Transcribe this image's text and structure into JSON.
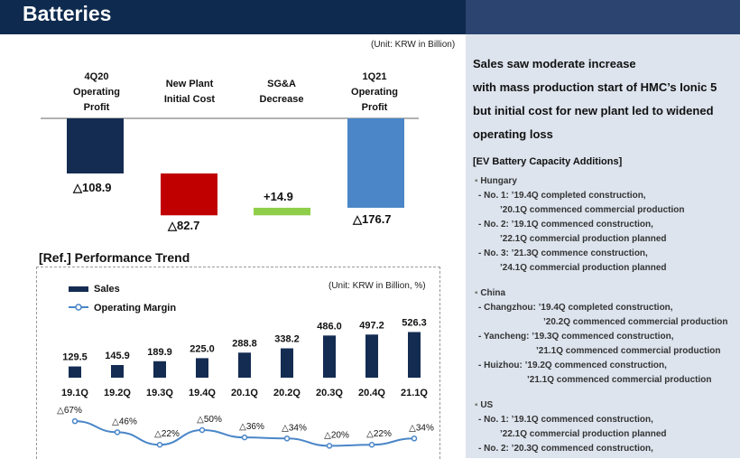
{
  "header": {
    "title": "Batteries"
  },
  "waterfall": {
    "unit": "(Unit: KRW in Billion)",
    "items": [
      {
        "label": [
          "4Q20",
          "Operating",
          "Profit"
        ],
        "value_text": "△108.9",
        "value": -108.9,
        "color": "#142c52"
      },
      {
        "label": [
          "New Plant",
          "Initial Cost"
        ],
        "value_text": "△82.7",
        "value": -82.7,
        "color": "#c00000"
      },
      {
        "label": [
          "SG&A",
          "Decrease"
        ],
        "value_text": "+14.9",
        "value": 14.9,
        "color": "#8fce4a"
      },
      {
        "label": [
          "1Q21",
          "Operating",
          "Profit"
        ],
        "value_text": "△176.7",
        "value": -176.7,
        "color": "#4a86c8"
      }
    ]
  },
  "trend": {
    "title": "[Ref.] Performance Trend",
    "unit": "(Unit: KRW in Billion, %)",
    "legend_sales": "Sales",
    "legend_margin": "Operating Margin"
  },
  "chart_data": {
    "type": "bar",
    "categories": [
      "19.1Q",
      "19.2Q",
      "19.3Q",
      "19.4Q",
      "20.1Q",
      "20.2Q",
      "20.3Q",
      "20.4Q",
      "21.1Q"
    ],
    "series": [
      {
        "name": "Sales",
        "values": [
          129.5,
          145.9,
          189.9,
          225.0,
          288.8,
          338.2,
          486.0,
          497.2,
          526.3
        ],
        "labels": [
          "129.5",
          "145.9",
          "189.9",
          "225.0",
          "288.8",
          "338.2",
          "486.0",
          "497.2",
          "526.3"
        ],
        "color": "#142c52"
      },
      {
        "name": "Operating Margin",
        "values": [
          -67,
          -46,
          -22,
          -50,
          -36,
          -34,
          -20,
          -22,
          -34
        ],
        "labels": [
          "△67%",
          "△46%",
          "△22%",
          "△50%",
          "△36%",
          "△34%",
          "△20%",
          "△22%",
          "△34%"
        ],
        "color": "#4a86c8"
      }
    ]
  },
  "right": {
    "heading": [
      "Sales saw moderate increase",
      "with mass production start of HMC’s Ionic 5",
      "but initial cost for new plant led to widened",
      "operating loss"
    ],
    "subheading": "[EV Battery Capacity Additions]",
    "sections": [
      {
        "name": "Hungary",
        "lines": [
          "- No. 1: ’19.4Q completed construction,",
          "’20.1Q commenced commercial production",
          "- No. 2: ’19.1Q commenced construction,",
          "’22.1Q commercial production planned",
          "- No. 3: ’21.3Q commence construction,",
          "’24.1Q commercial production planned"
        ]
      },
      {
        "name": "China",
        "lines": [
          "- Changzhou: ’19.4Q completed construction,",
          "’20.2Q commenced commercial production",
          "- Yancheng: ’19.3Q commenced construction,",
          "’21.1Q commenced commercial production",
          "- Huizhou: ’19.2Q commenced construction,",
          "’21.1Q commenced commercial production"
        ]
      },
      {
        "name": "US",
        "lines": [
          "- No. 1: ’19.1Q commenced construction,",
          "’22.1Q commercial production planned",
          "- No. 2: ’20.3Q commenced construction,"
        ]
      }
    ]
  }
}
